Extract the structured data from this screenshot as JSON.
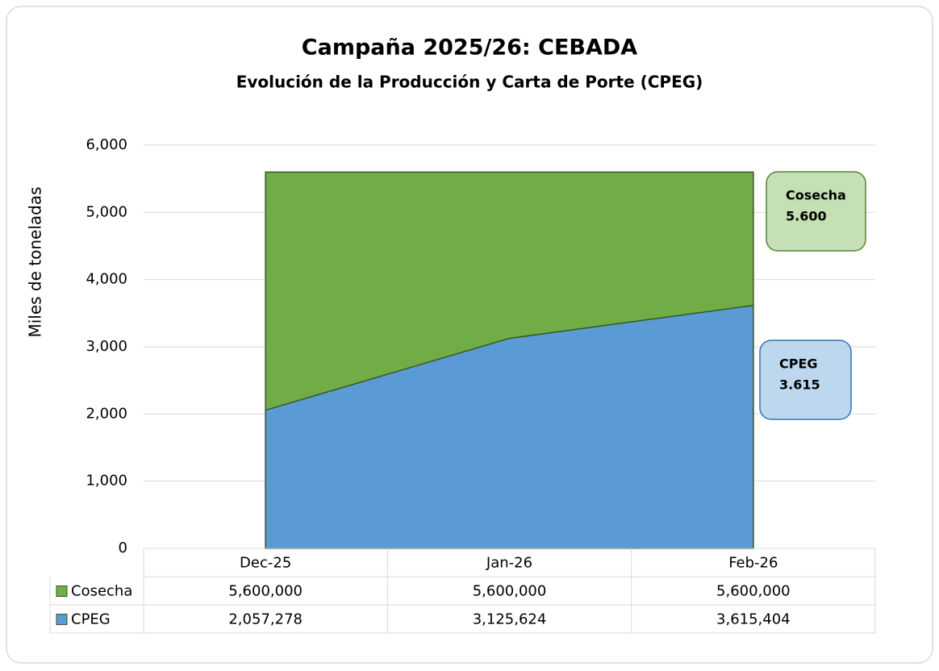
{
  "chart_data": {
    "type": "area",
    "title": "Campaña 2025/26: CEBADA",
    "subtitle": "Evolución de la Producción y Carta de Porte (CPEG)",
    "ylabel": "Miles de toneladas",
    "categories": [
      "Dec-25",
      "Jan-26",
      "Feb-26"
    ],
    "series": [
      {
        "name": "Cosecha",
        "color": "#70ad47",
        "values": [
          5600,
          5600,
          5600
        ],
        "value_labels": [
          "5,600,000",
          "5,600,000",
          "5,600,000"
        ]
      },
      {
        "name": "CPEG",
        "color": "#5b9bd5",
        "values": [
          2057.278,
          3125.624,
          3615.404
        ],
        "value_labels": [
          "2,057,278",
          "3,125,624",
          "3,615,404"
        ]
      }
    ],
    "ylim": [
      0,
      6000
    ],
    "yticks": [
      0,
      {
        "value": 1000,
        "label": "1,000"
      },
      {
        "value": 2000,
        "label": "2,000"
      },
      {
        "value": 3000,
        "label": "3,000"
      },
      {
        "value": 4000,
        "label": "4,000"
      },
      {
        "value": 5000,
        "label": "5,000"
      },
      {
        "value": 6000,
        "label": "6,000"
      }
    ],
    "grid": true,
    "annotations": [
      {
        "label": "Cosecha",
        "text": "5.600"
      },
      {
        "label": "CPEG",
        "text": "3.615"
      }
    ]
  }
}
